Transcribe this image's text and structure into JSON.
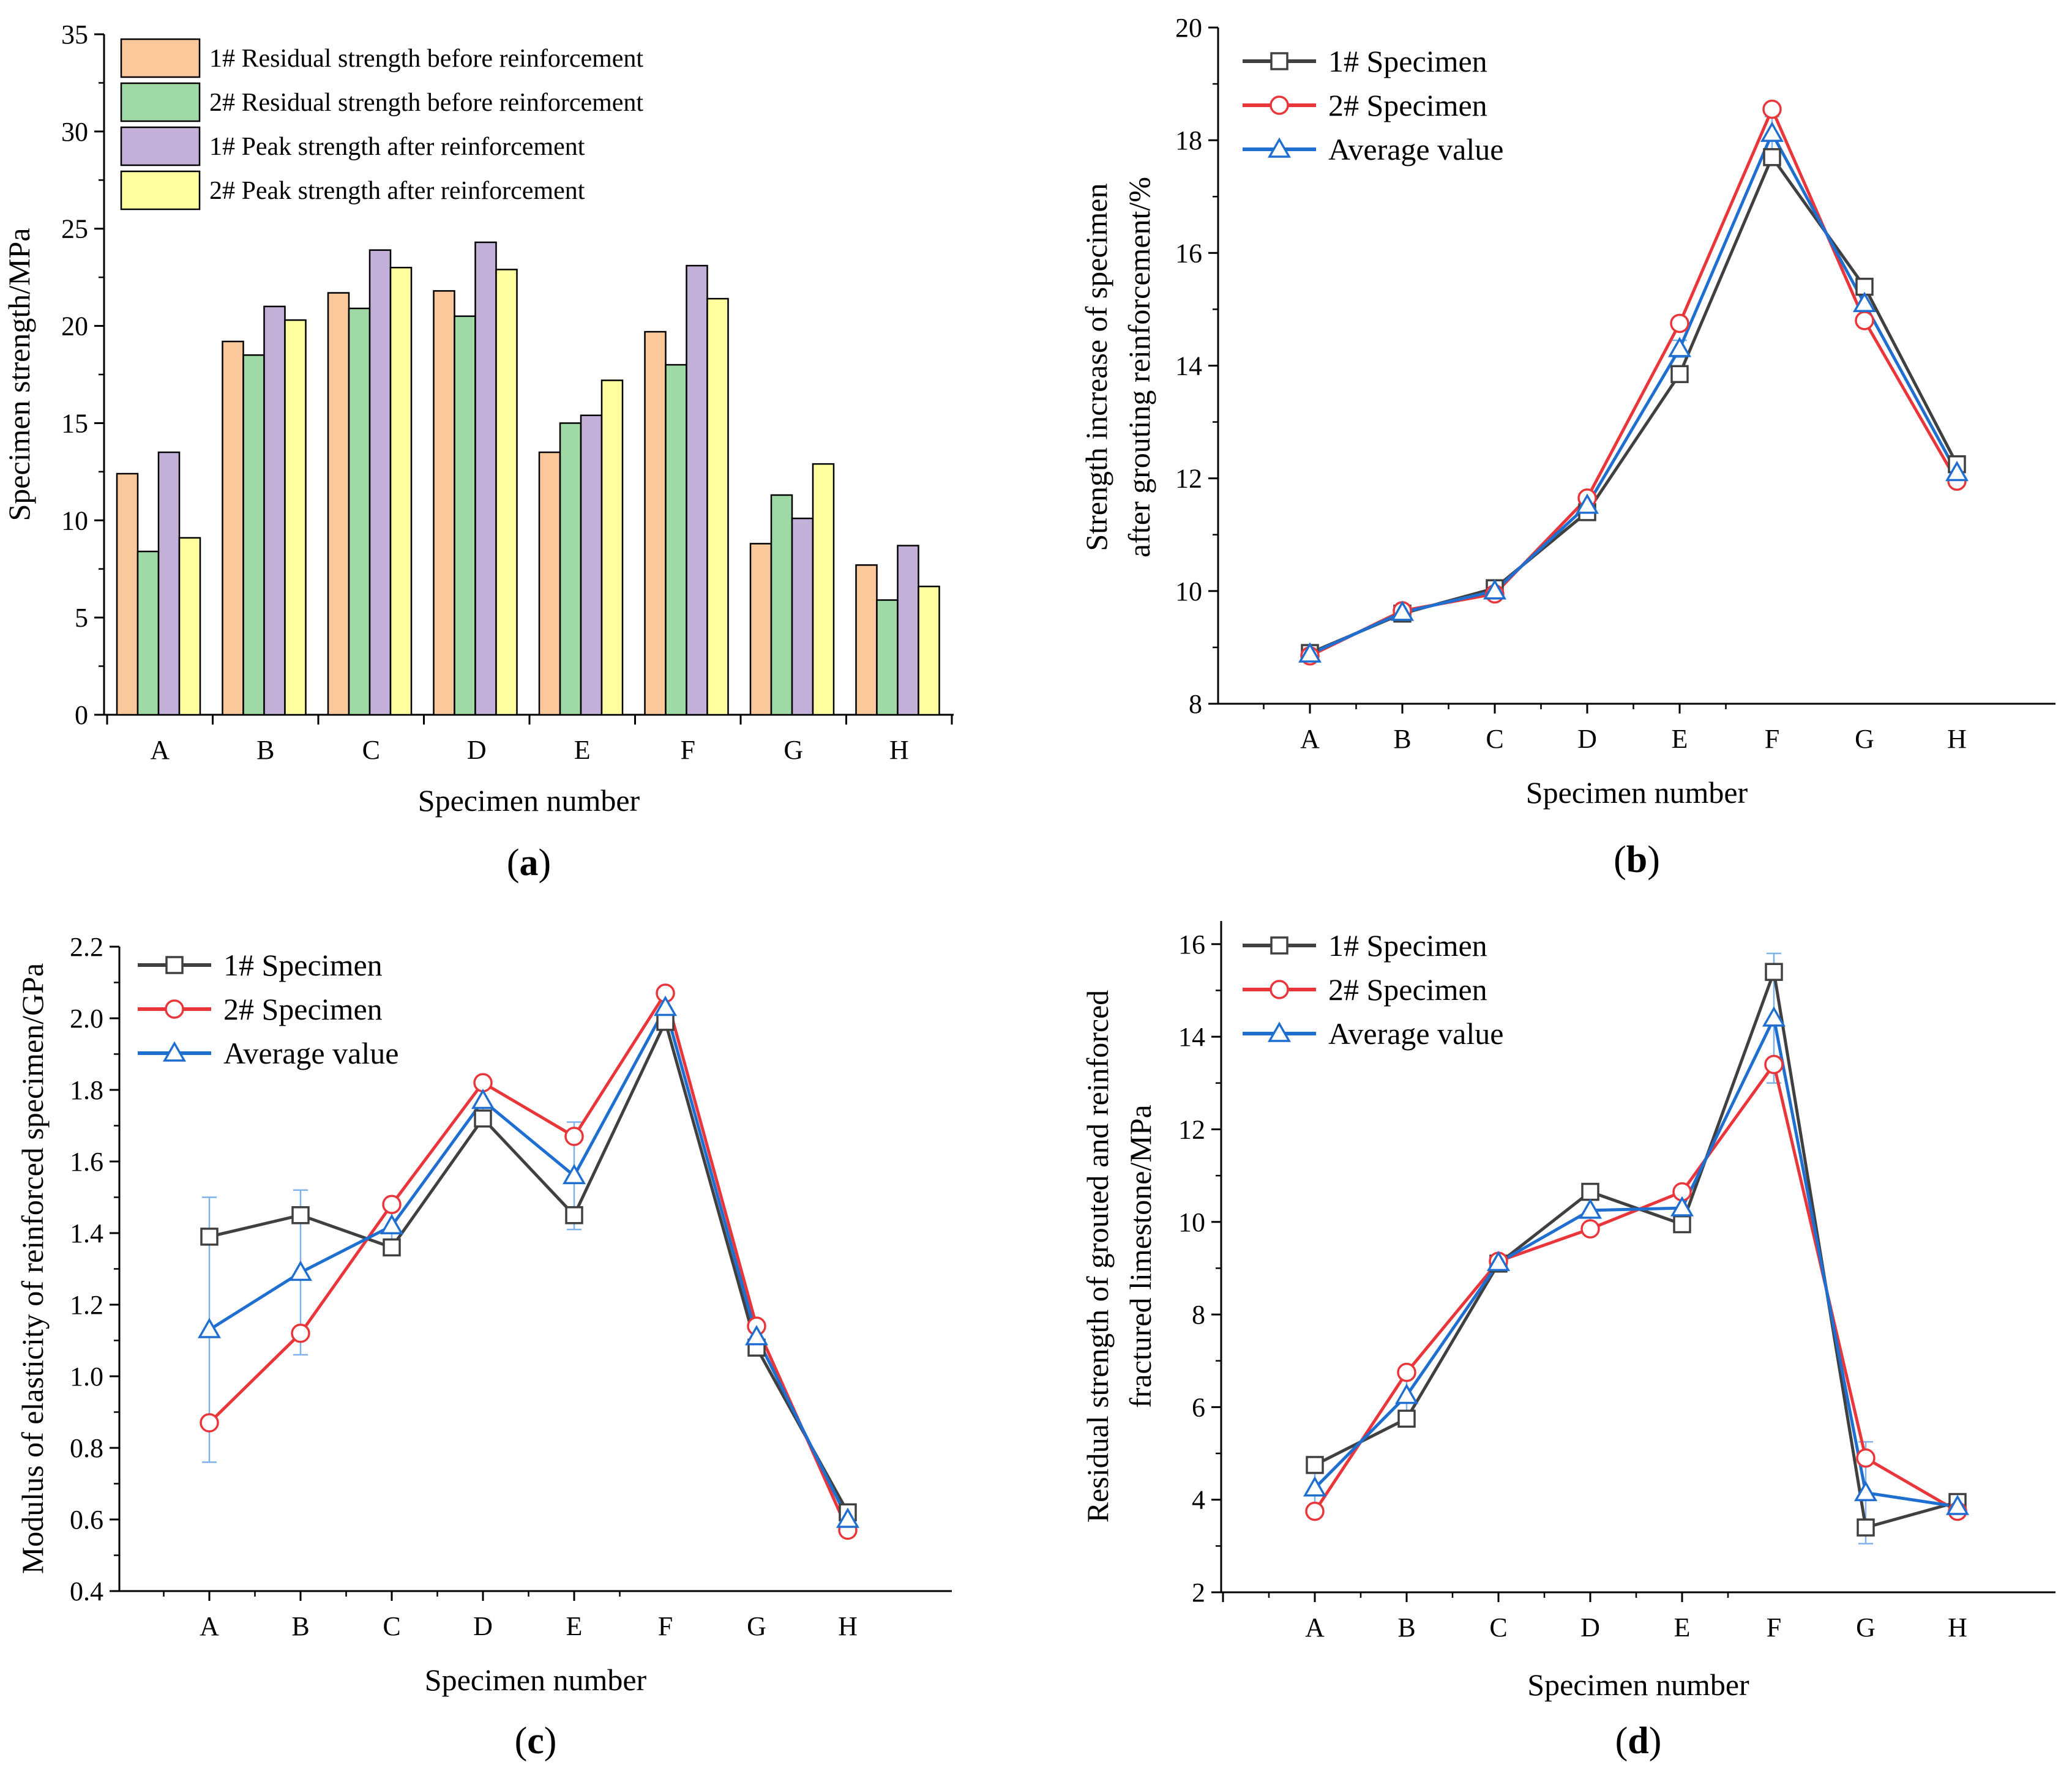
{
  "chart_data": [
    {
      "id": "a",
      "type": "bar",
      "panel_label": "a",
      "xlabel": "Specimen number",
      "ylabel": "Specimen strength/MPa",
      "ylim": [
        0,
        35
      ],
      "yticks": [
        0,
        5,
        10,
        15,
        20,
        25,
        30,
        35
      ],
      "categories": [
        "A",
        "B",
        "C",
        "D",
        "E",
        "F",
        "G",
        "H"
      ],
      "legend_position": "top-left",
      "series": [
        {
          "name": "1# Residual strength before reinforcement",
          "color": "#FBC89B",
          "values": [
            12.4,
            19.2,
            21.7,
            21.8,
            13.5,
            19.7,
            8.8,
            7.7
          ]
        },
        {
          "name": "2# Residual strength before reinforcement",
          "color": "#9ED9A6",
          "values": [
            8.4,
            18.5,
            20.9,
            20.5,
            15.0,
            18.0,
            11.3,
            5.9
          ]
        },
        {
          "name": "1# Peak strength after reinforcement",
          "color": "#C2B0D8",
          "values": [
            13.5,
            21.0,
            23.9,
            24.3,
            15.4,
            23.1,
            10.1,
            8.7
          ]
        },
        {
          "name": "2# Peak strength after reinforcement",
          "color": "#FFFF9F",
          "values": [
            9.1,
            20.3,
            23.0,
            22.9,
            17.2,
            21.4,
            12.9,
            6.6
          ]
        }
      ]
    },
    {
      "id": "b",
      "type": "line",
      "panel_label": "b",
      "xlabel": "Specimen number",
      "ylabel": [
        "Strength increase of specimen",
        "after grouting reinforcement/%"
      ],
      "ylim": [
        8,
        20
      ],
      "yticks": [
        8,
        10,
        12,
        14,
        16,
        18,
        20
      ],
      "categories": [
        "A",
        "B",
        "C",
        "D",
        "E",
        "F",
        "G",
        "H"
      ],
      "legend_position": "top-left",
      "series": [
        {
          "name": "1# Specimen",
          "color": "#404040",
          "marker": "square",
          "values": [
            8.9,
            9.6,
            10.05,
            11.4,
            13.85,
            17.7,
            15.4,
            12.25
          ]
        },
        {
          "name": "2# Specimen",
          "color": "#E8363A",
          "marker": "circle",
          "values": [
            8.85,
            9.65,
            9.95,
            11.65,
            14.75,
            18.55,
            14.8,
            11.95
          ]
        },
        {
          "name": "Average value",
          "color": "#1F6FD1",
          "marker": "triangle",
          "values": [
            8.88,
            9.62,
            10.0,
            11.52,
            14.3,
            18.12,
            15.1,
            12.1
          ]
        }
      ],
      "error_bars": [
        0.05,
        0.05,
        0.08,
        0.12,
        0.15,
        0.3,
        0.2,
        0.1
      ]
    },
    {
      "id": "c",
      "type": "line",
      "panel_label": "c",
      "xlabel": "Specimen number",
      "ylabel": "Modulus of elasticity of reinforced specimen/GPa",
      "ylim": [
        0.4,
        2.2
      ],
      "yticks": [
        "0.4",
        "0.6",
        "0.8",
        "1.0",
        "1.2",
        "1.4",
        "1.6",
        "1.8",
        "2.0",
        "2.2"
      ],
      "categories": [
        "A",
        "B",
        "C",
        "D",
        "E",
        "F",
        "G",
        "H"
      ],
      "legend_position": "top-left",
      "series": [
        {
          "name": "1# Specimen",
          "color": "#404040",
          "marker": "square",
          "values": [
            1.39,
            1.45,
            1.36,
            1.72,
            1.45,
            1.99,
            1.08,
            0.62
          ]
        },
        {
          "name": "2# Specimen",
          "color": "#E8363A",
          "marker": "circle",
          "values": [
            0.87,
            1.12,
            1.48,
            1.82,
            1.67,
            2.07,
            1.14,
            0.57
          ]
        },
        {
          "name": "Average value",
          "color": "#1F6FD1",
          "marker": "triangle",
          "values": [
            1.13,
            1.29,
            1.42,
            1.77,
            1.56,
            2.03,
            1.11,
            0.6
          ]
        }
      ],
      "error_bars": [
        0.37,
        0.23,
        0.06,
        0.06,
        0.15,
        0.04,
        0.03,
        0.03
      ]
    },
    {
      "id": "d",
      "type": "line",
      "panel_label": "d",
      "xlabel": "Specimen number",
      "ylabel": [
        "Residual strength of grouted and reinforced",
        "fractured limestone/MPa"
      ],
      "ylim": [
        2,
        16.5
      ],
      "yticks": [
        2,
        4,
        6,
        8,
        10,
        12,
        14,
        16
      ],
      "categories": [
        "A",
        "B",
        "C",
        "D",
        "E",
        "F",
        "G",
        "H"
      ],
      "legend_position": "top-left",
      "series": [
        {
          "name": "1# Specimen",
          "color": "#404040",
          "marker": "square",
          "values": [
            4.75,
            5.75,
            9.1,
            10.65,
            9.95,
            15.4,
            3.4,
            3.95
          ]
        },
        {
          "name": "2# Specimen",
          "color": "#E8363A",
          "marker": "circle",
          "values": [
            3.75,
            6.75,
            9.15,
            9.85,
            10.65,
            13.4,
            4.9,
            3.75
          ]
        },
        {
          "name": "Average value",
          "color": "#1F6FD1",
          "marker": "triangle",
          "values": [
            4.25,
            6.25,
            9.12,
            10.25,
            10.3,
            14.4,
            4.15,
            3.85
          ]
        }
      ],
      "error_bars": [
        0.55,
        0.6,
        0.15,
        0.4,
        0.4,
        1.4,
        1.1,
        0.15
      ]
    }
  ]
}
